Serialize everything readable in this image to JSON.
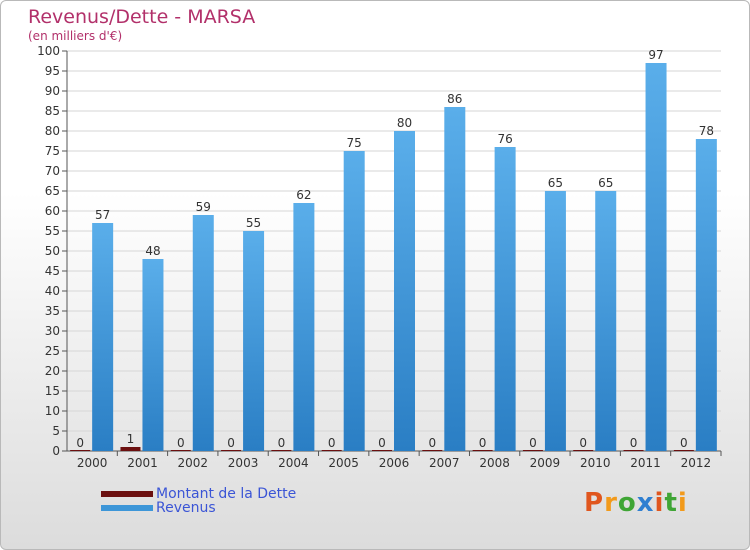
{
  "chart_data": {
    "type": "bar",
    "title": "Revenus/Dette - MARSA",
    "subtitle": "(en milliers d'€)",
    "categories": [
      "2000",
      "2001",
      "2002",
      "2003",
      "2004",
      "2005",
      "2006",
      "2007",
      "2008",
      "2009",
      "2010",
      "2011",
      "2012"
    ],
    "series": [
      {
        "name": "Montant de la Dette",
        "values": [
          0,
          1,
          0,
          0,
          0,
          0,
          0,
          0,
          0,
          0,
          0,
          0,
          0
        ],
        "color": "#6b0f0f"
      },
      {
        "name": "Revenus",
        "values": [
          57,
          48,
          59,
          55,
          62,
          75,
          80,
          86,
          76,
          65,
          65,
          97,
          78
        ],
        "color": "#3d96d8"
      }
    ],
    "ylim": [
      0,
      100
    ],
    "yticks": [
      0,
      5,
      10,
      15,
      20,
      25,
      30,
      35,
      40,
      45,
      50,
      55,
      60,
      65,
      70,
      75,
      80,
      85,
      90,
      95,
      100
    ],
    "grid": true,
    "legend_position": "bottom-left"
  },
  "logo": {
    "text": "Proxiti"
  }
}
